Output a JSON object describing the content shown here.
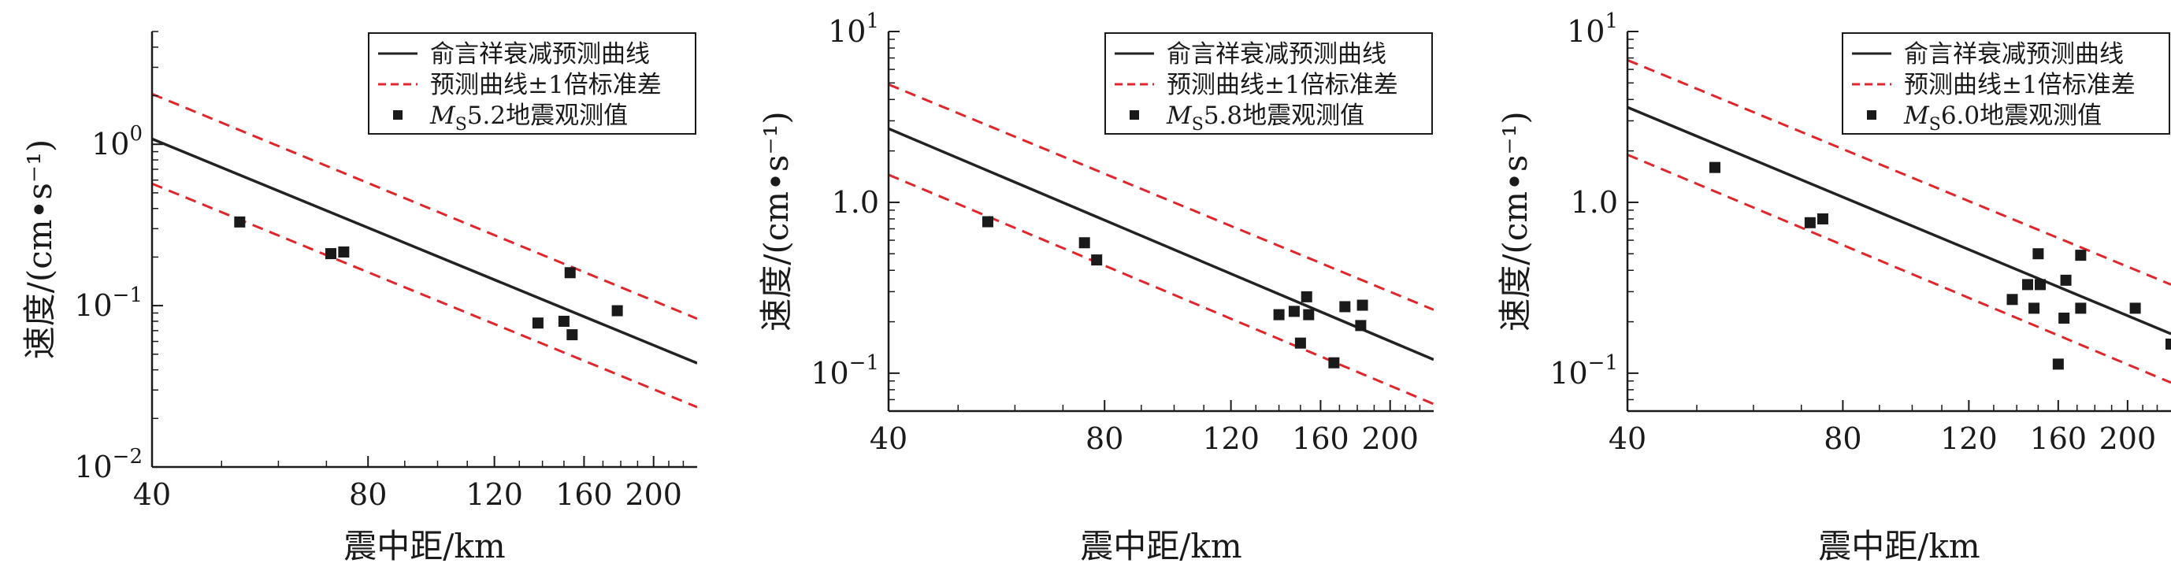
{
  "chart_data": [
    {
      "type": "scatter",
      "xlabel": "震中距/km",
      "ylabel": "速度/(cm•s⁻¹)",
      "xscale": "log",
      "yscale": "log",
      "xlim": [
        40,
        230
      ],
      "ylim": [
        0.01,
        5
      ],
      "xticks": [
        40,
        80,
        120,
        160,
        200
      ],
      "xtick_labels": [
        "40",
        "80",
        "120",
        "160",
        "200"
      ],
      "yticks": [
        0.01,
        0.1,
        1
      ],
      "ytick_labels": [
        {
          "base": "10",
          "exp": "−2"
        },
        {
          "base": "10",
          "exp": "−1"
        },
        {
          "base": "10",
          "exp": "0"
        }
      ],
      "legend_position": "top-right",
      "legend": [
        {
          "label": "俞言祥衰减预测曲线",
          "style": "solid",
          "color": "#222222"
        },
        {
          "label": "预测曲线±1倍标准差",
          "style": "dashed",
          "color": "#e0262b"
        },
        {
          "label_italic": "M",
          "label_sub": "S",
          "label_rest": "5.2地震观测值",
          "style": "marker",
          "color": "#222222"
        }
      ],
      "series": [
        {
          "name": "俞言祥衰减预测曲线",
          "x": [
            40,
            230
          ],
          "y": [
            1.08,
            0.044
          ]
        },
        {
          "name": "预测曲线±1倍标准差",
          "x": [
            40,
            230
          ],
          "y": [
            2.05,
            0.083
          ]
        },
        {
          "name": "预测曲线±1倍标准差",
          "x": [
            40,
            230
          ],
          "y": [
            0.57,
            0.0235
          ]
        },
        {
          "name": "MS5.2地震观测值",
          "x": [
            53,
            71,
            74,
            138,
            150,
            153,
            154,
            178
          ],
          "y": [
            0.33,
            0.21,
            0.215,
            0.078,
            0.08,
            0.16,
            0.066,
            0.093
          ]
        }
      ]
    },
    {
      "type": "scatter",
      "xlabel": "震中距/km",
      "ylabel": "速度/(cm•s⁻¹)",
      "xscale": "log",
      "yscale": "log",
      "xlim": [
        40,
        230
      ],
      "ylim": [
        0.06,
        10
      ],
      "xticks": [
        40,
        80,
        120,
        160,
        200
      ],
      "xtick_labels": [
        "40",
        "80",
        "120",
        "160",
        "200"
      ],
      "yticks": [
        0.1,
        1,
        10
      ],
      "ytick_labels": [
        {
          "base": "10",
          "exp": "−1"
        },
        {
          "base": "1.0",
          "exp": ""
        },
        {
          "base": "10",
          "exp": "1"
        }
      ],
      "legend_position": "top-right",
      "legend": [
        {
          "label": "俞言祥衰减预测曲线",
          "style": "solid",
          "color": "#222222"
        },
        {
          "label": "预测曲线±1倍标准差",
          "style": "dashed",
          "color": "#e0262b"
        },
        {
          "label_italic": "M",
          "label_sub": "S",
          "label_rest": "5.8地震观测值",
          "style": "marker",
          "color": "#222222"
        }
      ],
      "series": [
        {
          "name": "俞言祥衰减预测曲线",
          "x": [
            40,
            230
          ],
          "y": [
            2.7,
            0.12
          ]
        },
        {
          "name": "预测曲线±1倍标准差",
          "x": [
            40,
            230
          ],
          "y": [
            4.9,
            0.235
          ]
        },
        {
          "name": "预测曲线±1倍标准差",
          "x": [
            40,
            230
          ],
          "y": [
            1.45,
            0.066
          ]
        },
        {
          "name": "MS5.8地震观测值",
          "x": [
            55,
            75,
            78,
            140,
            147,
            150,
            153,
            154,
            167,
            173,
            182,
            183
          ],
          "y": [
            0.77,
            0.58,
            0.46,
            0.22,
            0.23,
            0.15,
            0.28,
            0.22,
            0.115,
            0.245,
            0.19,
            0.25
          ]
        }
      ]
    },
    {
      "type": "scatter",
      "xlabel": "震中距/km",
      "ylabel": "速度/(cm•s⁻¹)",
      "xscale": "log",
      "yscale": "log",
      "xlim": [
        40,
        230
      ],
      "ylim": [
        0.06,
        10
      ],
      "xticks": [
        40,
        80,
        120,
        160,
        200
      ],
      "xtick_labels": [
        "40",
        "80",
        "120",
        "160",
        "200"
      ],
      "yticks": [
        0.1,
        1,
        10
      ],
      "ytick_labels": [
        {
          "base": "10",
          "exp": "−1"
        },
        {
          "base": "1.0",
          "exp": ""
        },
        {
          "base": "10",
          "exp": "1"
        }
      ],
      "legend_position": "top-right",
      "legend": [
        {
          "label": "俞言祥衰减预测曲线",
          "style": "solid",
          "color": "#222222"
        },
        {
          "label": "预测曲线±1倍标准差",
          "style": "dashed",
          "color": "#e0262b"
        },
        {
          "label_italic": "M",
          "label_sub": "S",
          "label_rest": "6.0地震观测值",
          "style": "marker",
          "color": "#222222"
        }
      ],
      "series": [
        {
          "name": "俞言祥衰减预测曲线",
          "x": [
            40,
            230
          ],
          "y": [
            3.6,
            0.17
          ]
        },
        {
          "name": "预测曲线±1倍标准差",
          "x": [
            40,
            230
          ],
          "y": [
            6.8,
            0.33
          ]
        },
        {
          "name": "预测曲线±1倍标准差",
          "x": [
            40,
            230
          ],
          "y": [
            1.9,
            0.088
          ]
        },
        {
          "name": "MS6.0地震观测值",
          "x": [
            53,
            72,
            75,
            138,
            145,
            148,
            150,
            151,
            160,
            163,
            164,
            172,
            172,
            205,
            230
          ],
          "y": [
            1.6,
            0.76,
            0.8,
            0.27,
            0.33,
            0.24,
            0.5,
            0.33,
            0.113,
            0.21,
            0.35,
            0.49,
            0.24,
            0.24,
            0.148
          ]
        }
      ]
    }
  ]
}
